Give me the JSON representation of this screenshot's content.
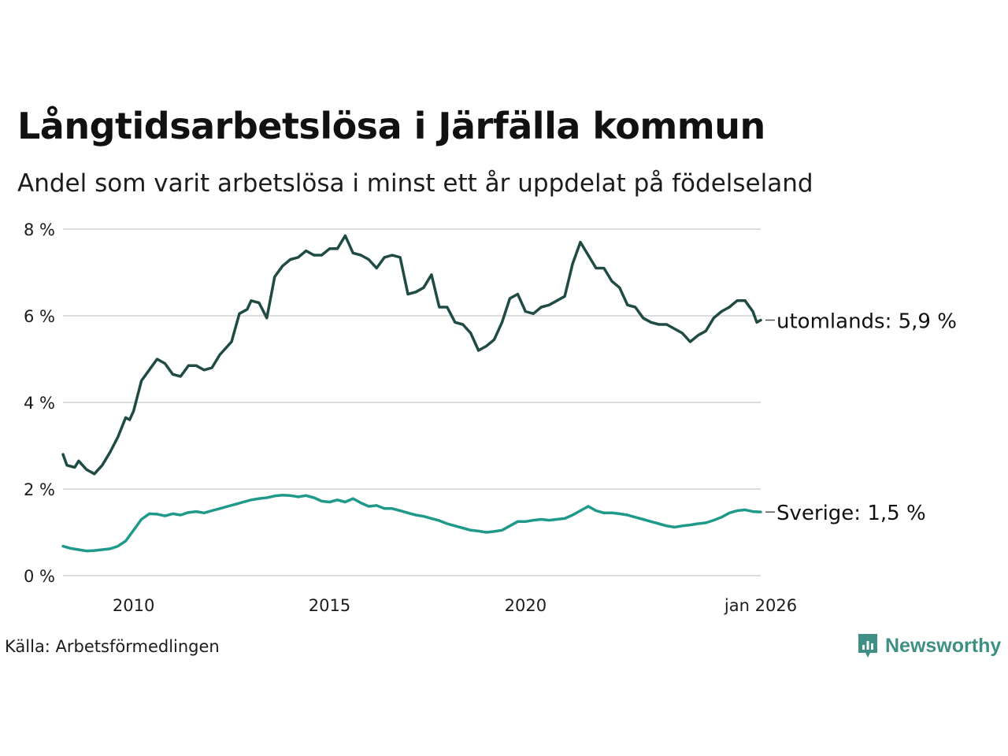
{
  "title": "Långtidsarbetslösa i Järfälla kommun",
  "subtitle": "Andel som varit arbetslösa i minst ett år uppdelat på födelseland",
  "source": "Källa: Arbetsförmedlingen",
  "brand": "Newsworthy",
  "colors": {
    "utomlands": "#1f4b44",
    "sverige": "#1f9a8a",
    "grid": "#dddddd",
    "brand": "#3f8f85"
  },
  "chart_data": {
    "type": "line",
    "title": "Långtidsarbetslösa i Järfälla kommun",
    "ylim": [
      0,
      8
    ],
    "xlim": [
      2008.2,
      2026.0
    ],
    "y_ticks": [
      0,
      2,
      4,
      6,
      8
    ],
    "y_tick_labels": [
      "0 %",
      "2 %",
      "4 %",
      "6 %",
      "8 %"
    ],
    "x_ticks": [
      2010,
      2015,
      2020,
      2026.0
    ],
    "x_tick_labels": [
      "2010",
      "2015",
      "2020",
      "jan 2026"
    ],
    "series": [
      {
        "name": "utomlands",
        "end_label": "utomlands: 5,9 %",
        "x": [
          2008.2,
          2008.3,
          2008.5,
          2008.6,
          2008.8,
          2008.9,
          2009.0,
          2009.2,
          2009.4,
          2009.6,
          2009.8,
          2009.9,
          2010.0,
          2010.2,
          2010.4,
          2010.6,
          2010.8,
          2011.0,
          2011.2,
          2011.4,
          2011.6,
          2011.8,
          2012.0,
          2012.2,
          2012.5,
          2012.7,
          2012.9,
          2013.0,
          2013.2,
          2013.4,
          2013.6,
          2013.8,
          2014.0,
          2014.2,
          2014.4,
          2014.6,
          2014.8,
          2015.0,
          2015.2,
          2015.4,
          2015.6,
          2015.8,
          2016.0,
          2016.2,
          2016.4,
          2016.6,
          2016.8,
          2017.0,
          2017.2,
          2017.4,
          2017.6,
          2017.8,
          2018.0,
          2018.2,
          2018.4,
          2018.6,
          2018.8,
          2019.0,
          2019.2,
          2019.4,
          2019.6,
          2019.8,
          2020.0,
          2020.2,
          2020.4,
          2020.6,
          2020.8,
          2021.0,
          2021.2,
          2021.4,
          2021.6,
          2021.8,
          2022.0,
          2022.2,
          2022.4,
          2022.6,
          2022.8,
          2023.0,
          2023.2,
          2023.4,
          2023.6,
          2023.8,
          2024.0,
          2024.2,
          2024.4,
          2024.6,
          2024.8,
          2025.0,
          2025.2,
          2025.4,
          2025.6,
          2025.8,
          2025.9,
          2026.0
        ],
        "values": [
          2.8,
          2.55,
          2.5,
          2.65,
          2.45,
          2.4,
          2.35,
          2.55,
          2.85,
          3.2,
          3.65,
          3.6,
          3.8,
          4.5,
          4.75,
          5.0,
          4.9,
          4.65,
          4.6,
          4.85,
          4.85,
          4.75,
          4.8,
          5.1,
          5.4,
          6.05,
          6.15,
          6.35,
          6.3,
          5.95,
          6.9,
          7.15,
          7.3,
          7.35,
          7.5,
          7.4,
          7.4,
          7.55,
          7.55,
          7.85,
          7.45,
          7.4,
          7.3,
          7.1,
          7.35,
          7.4,
          7.35,
          6.5,
          6.55,
          6.65,
          6.95,
          6.2,
          6.2,
          5.85,
          5.8,
          5.6,
          5.2,
          5.3,
          5.45,
          5.85,
          6.4,
          6.5,
          6.1,
          6.05,
          6.2,
          6.25,
          6.35,
          6.45,
          7.2,
          7.7,
          7.4,
          7.1,
          7.1,
          6.8,
          6.65,
          6.25,
          6.2,
          5.95,
          5.85,
          5.8,
          5.8,
          5.7,
          5.6,
          5.4,
          5.55,
          5.65,
          5.95,
          6.1,
          6.2,
          6.35,
          6.35,
          6.1,
          5.85,
          5.9
        ]
      },
      {
        "name": "Sverige",
        "end_label": "Sverige: 1,5 %",
        "x": [
          2008.2,
          2008.4,
          2008.6,
          2008.8,
          2009.0,
          2009.2,
          2009.4,
          2009.6,
          2009.8,
          2010.0,
          2010.2,
          2010.4,
          2010.6,
          2010.8,
          2011.0,
          2011.2,
          2011.4,
          2011.6,
          2011.8,
          2012.0,
          2012.2,
          2012.4,
          2012.6,
          2012.8,
          2013.0,
          2013.2,
          2013.4,
          2013.6,
          2013.8,
          2014.0,
          2014.2,
          2014.4,
          2014.6,
          2014.8,
          2015.0,
          2015.2,
          2015.4,
          2015.6,
          2015.8,
          2016.0,
          2016.2,
          2016.4,
          2016.6,
          2016.8,
          2017.0,
          2017.2,
          2017.4,
          2017.6,
          2017.8,
          2018.0,
          2018.2,
          2018.4,
          2018.6,
          2018.8,
          2019.0,
          2019.2,
          2019.4,
          2019.6,
          2019.8,
          2020.0,
          2020.2,
          2020.4,
          2020.6,
          2020.8,
          2021.0,
          2021.2,
          2021.4,
          2021.6,
          2021.8,
          2022.0,
          2022.2,
          2022.4,
          2022.6,
          2022.8,
          2023.0,
          2023.2,
          2023.4,
          2023.6,
          2023.8,
          2024.0,
          2024.2,
          2024.4,
          2024.6,
          2024.8,
          2025.0,
          2025.2,
          2025.4,
          2025.6,
          2025.8,
          2026.0
        ],
        "values": [
          0.68,
          0.63,
          0.6,
          0.57,
          0.58,
          0.6,
          0.62,
          0.68,
          0.8,
          1.05,
          1.3,
          1.43,
          1.42,
          1.38,
          1.43,
          1.4,
          1.46,
          1.48,
          1.45,
          1.5,
          1.55,
          1.6,
          1.65,
          1.7,
          1.75,
          1.78,
          1.8,
          1.84,
          1.86,
          1.85,
          1.82,
          1.85,
          1.8,
          1.72,
          1.7,
          1.75,
          1.7,
          1.78,
          1.68,
          1.6,
          1.62,
          1.55,
          1.55,
          1.5,
          1.45,
          1.4,
          1.37,
          1.32,
          1.27,
          1.2,
          1.15,
          1.1,
          1.05,
          1.03,
          1.0,
          1.02,
          1.05,
          1.15,
          1.25,
          1.25,
          1.28,
          1.3,
          1.28,
          1.3,
          1.32,
          1.4,
          1.5,
          1.6,
          1.5,
          1.45,
          1.45,
          1.43,
          1.4,
          1.35,
          1.3,
          1.25,
          1.2,
          1.15,
          1.12,
          1.15,
          1.17,
          1.2,
          1.22,
          1.28,
          1.35,
          1.45,
          1.5,
          1.52,
          1.48,
          1.47
        ]
      }
    ]
  }
}
